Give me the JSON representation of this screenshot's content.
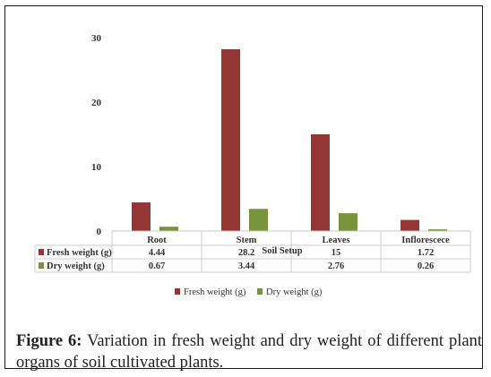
{
  "chart_data": {
    "type": "bar",
    "categories": [
      "Root",
      "Stem",
      "Leaves",
      "Inflorescece"
    ],
    "series": [
      {
        "name": "Fresh weight (g)",
        "values": [
          4.44,
          28.2,
          15,
          1.72
        ],
        "color": "#943634",
        "labels": [
          "4.44",
          "28.2",
          "15",
          "1.72"
        ]
      },
      {
        "name": "Dry weight (g)",
        "values": [
          0.67,
          3.44,
          2.76,
          0.26
        ],
        "color": "#77933c",
        "labels": [
          "0.67",
          "3.44",
          "2.76",
          "0.26"
        ]
      }
    ],
    "yticks": [
      "0",
      "10",
      "20",
      "30"
    ],
    "ylim": [
      0,
      30
    ],
    "xlabel": "Soil Setup",
    "legend_position": "bottom",
    "data_table": true,
    "grid": false
  },
  "caption": {
    "label": "Figure 6:",
    "text": " Variation in fresh weight and dry weight of different plant organs of soil cultivated plants."
  }
}
